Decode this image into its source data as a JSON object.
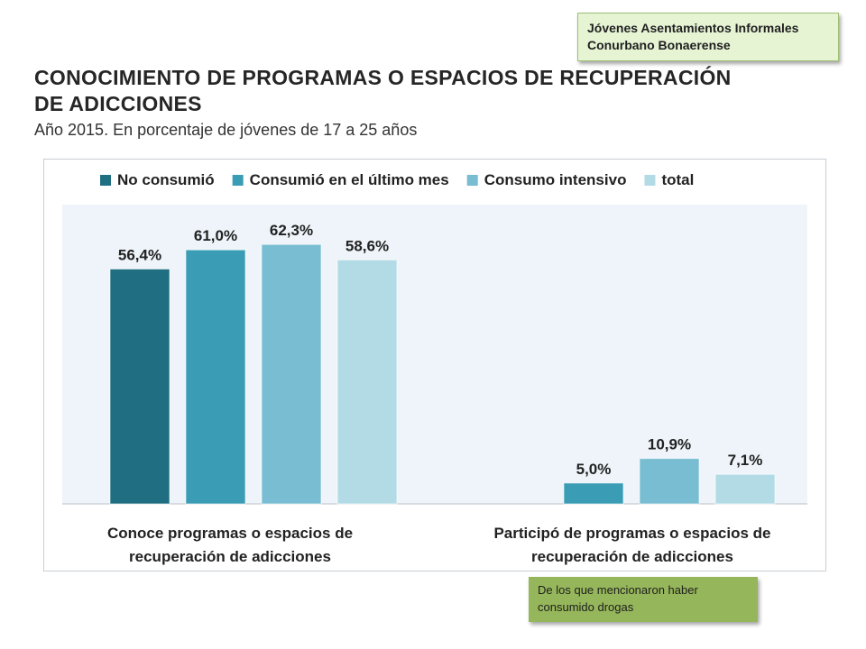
{
  "header": {
    "tag_line1": "Jóvenes Asentamientos Informales",
    "tag_line2": "Conurbano Bonaerense",
    "title_line1": "CONOCIMIENTO DE PROGRAMAS O ESPACIOS DE RECUPERACIÓN",
    "title_line2": "DE ADICCIONES",
    "subtitle": "Año 2015.  En porcentaje de jóvenes de 17 a 25 años"
  },
  "note": {
    "line1": "De los que mencionaron haber",
    "line2": "consumido drogas"
  },
  "chart_data": {
    "type": "bar",
    "title": "CONOCIMIENTO DE PROGRAMAS O ESPACIOS DE RECUPERACIÓN DE ADICCIONES",
    "subtitle": "Año 2015.  En porcentaje de jóvenes de 17 a 25 años",
    "categories": [
      [
        "Conoce programas o espacios de",
        "recuperación de adicciones"
      ],
      [
        "Participó de programas o espacios de",
        "recuperación de adicciones"
      ]
    ],
    "series": [
      {
        "name": "No consumió",
        "color": "#1f6e82",
        "values": [
          56.4,
          null
        ],
        "labels": [
          "56,4%",
          ""
        ]
      },
      {
        "name": "Consumió en el último mes",
        "color": "#3a9db5",
        "values": [
          61.0,
          5.0
        ],
        "labels": [
          "61,0%",
          "5,0%"
        ]
      },
      {
        "name": "Consumo intensivo",
        "color": "#79bdd2",
        "values": [
          62.3,
          10.9
        ],
        "labels": [
          "62,3%",
          "10,9%"
        ]
      },
      {
        "name": "total",
        "color": "#b3dbe6",
        "values": [
          58.6,
          7.1
        ],
        "labels": [
          "58,6%",
          "7,1%"
        ]
      }
    ],
    "ylim": [
      0,
      70
    ],
    "legend_position": "top",
    "grid": false
  }
}
